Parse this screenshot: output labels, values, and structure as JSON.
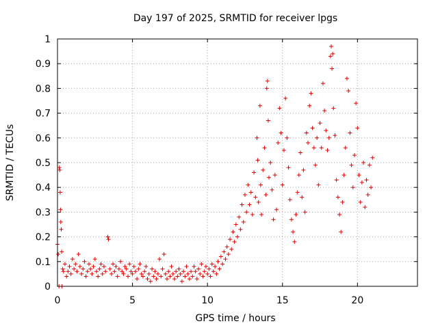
{
  "chart_data": {
    "type": "scatter",
    "title": "Day 197 of 2025, SRMTID for receiver lpgs",
    "xlabel": "GPS time / hours",
    "ylabel": "SRMTID / TECUs",
    "xlim": [
      0,
      24
    ],
    "ylim": [
      0,
      1
    ],
    "xticks": [
      0,
      5,
      10,
      15,
      20
    ],
    "xtick_labels": [
      "0",
      "5",
      "10",
      "15",
      "20"
    ],
    "yticks": [
      0,
      0.1,
      0.2,
      0.3,
      0.4,
      0.5,
      0.6,
      0.7,
      0.8,
      0.9,
      1
    ],
    "ytick_labels": [
      "0",
      "0.1",
      "0.2",
      "0.3",
      "0.4",
      "0.5",
      "0.6",
      "0.7",
      "0.8",
      "0.9",
      "1"
    ],
    "grid": true,
    "marker": "+",
    "color": "#e00000",
    "series": [
      {
        "name": "SRMTID",
        "points": [
          [
            0.0,
            0.17
          ],
          [
            0.05,
            0.13
          ],
          [
            0.1,
            0.0
          ],
          [
            0.12,
            0.48
          ],
          [
            0.15,
            0.47
          ],
          [
            0.18,
            0.38
          ],
          [
            0.2,
            0.31
          ],
          [
            0.22,
            0.26
          ],
          [
            0.25,
            0.23
          ],
          [
            0.28,
            0.14
          ],
          [
            0.3,
            0.0
          ],
          [
            0.35,
            0.07
          ],
          [
            0.4,
            0.06
          ],
          [
            0.5,
            0.09
          ],
          [
            0.6,
            0.04
          ],
          [
            0.7,
            0.06
          ],
          [
            0.8,
            0.08
          ],
          [
            0.9,
            0.05
          ],
          [
            1.0,
            0.11
          ],
          [
            1.1,
            0.07
          ],
          [
            1.2,
            0.09
          ],
          [
            1.3,
            0.06
          ],
          [
            1.4,
            0.13
          ],
          [
            1.5,
            0.08
          ],
          [
            1.6,
            0.05
          ],
          [
            1.7,
            0.07
          ],
          [
            1.8,
            0.1
          ],
          [
            1.9,
            0.04
          ],
          [
            2.0,
            0.06
          ],
          [
            2.1,
            0.09
          ],
          [
            2.2,
            0.07
          ],
          [
            2.3,
            0.05
          ],
          [
            2.4,
            0.08
          ],
          [
            2.5,
            0.11
          ],
          [
            2.6,
            0.06
          ],
          [
            2.7,
            0.04
          ],
          [
            2.8,
            0.07
          ],
          [
            2.9,
            0.09
          ],
          [
            3.0,
            0.05
          ],
          [
            3.1,
            0.08
          ],
          [
            3.2,
            0.06
          ],
          [
            3.35,
            0.2
          ],
          [
            3.4,
            0.19
          ],
          [
            3.5,
            0.07
          ],
          [
            3.6,
            0.05
          ],
          [
            3.7,
            0.09
          ],
          [
            3.8,
            0.06
          ],
          [
            3.9,
            0.08
          ],
          [
            4.0,
            0.04
          ],
          [
            4.1,
            0.07
          ],
          [
            4.2,
            0.1
          ],
          [
            4.3,
            0.06
          ],
          [
            4.4,
            0.05
          ],
          [
            4.5,
            0.08
          ],
          [
            4.6,
            0.07
          ],
          [
            4.7,
            0.04
          ],
          [
            4.8,
            0.09
          ],
          [
            4.9,
            0.06
          ],
          [
            5.0,
            0.05
          ],
          [
            5.1,
            0.08
          ],
          [
            5.2,
            0.06
          ],
          [
            5.3,
            0.03
          ],
          [
            5.4,
            0.07
          ],
          [
            5.5,
            0.09
          ],
          [
            5.6,
            0.05
          ],
          [
            5.7,
            0.04
          ],
          [
            5.8,
            0.06
          ],
          [
            5.9,
            0.08
          ],
          [
            6.0,
            0.03
          ],
          [
            6.1,
            0.05
          ],
          [
            6.2,
            0.02
          ],
          [
            6.3,
            0.07
          ],
          [
            6.4,
            0.04
          ],
          [
            6.5,
            0.06
          ],
          [
            6.6,
            0.03
          ],
          [
            6.7,
            0.05
          ],
          [
            6.8,
            0.11
          ],
          [
            6.9,
            0.04
          ],
          [
            7.0,
            0.07
          ],
          [
            7.1,
            0.13
          ],
          [
            7.2,
            0.05
          ],
          [
            7.3,
            0.03
          ],
          [
            7.4,
            0.06
          ],
          [
            7.5,
            0.04
          ],
          [
            7.6,
            0.08
          ],
          [
            7.7,
            0.05
          ],
          [
            7.8,
            0.03
          ],
          [
            7.9,
            0.06
          ],
          [
            8.0,
            0.04
          ],
          [
            8.1,
            0.07
          ],
          [
            8.2,
            0.05
          ],
          [
            8.3,
            0.02
          ],
          [
            8.4,
            0.06
          ],
          [
            8.5,
            0.04
          ],
          [
            8.6,
            0.08
          ],
          [
            8.7,
            0.05
          ],
          [
            8.8,
            0.03
          ],
          [
            8.9,
            0.06
          ],
          [
            9.0,
            0.04
          ],
          [
            9.1,
            0.08
          ],
          [
            9.2,
            0.06
          ],
          [
            9.3,
            0.03
          ],
          [
            9.4,
            0.07
          ],
          [
            9.5,
            0.05
          ],
          [
            9.6,
            0.09
          ],
          [
            9.7,
            0.04
          ],
          [
            9.8,
            0.06
          ],
          [
            9.9,
            0.08
          ],
          [
            10.0,
            0.05
          ],
          [
            10.1,
            0.07
          ],
          [
            10.2,
            0.04
          ],
          [
            10.3,
            0.09
          ],
          [
            10.4,
            0.06
          ],
          [
            10.5,
            0.08
          ],
          [
            10.6,
            0.05
          ],
          [
            10.7,
            0.1
          ],
          [
            10.8,
            0.07
          ],
          [
            10.9,
            0.12
          ],
          [
            11.0,
            0.09
          ],
          [
            11.1,
            0.14
          ],
          [
            11.2,
            0.11
          ],
          [
            11.3,
            0.16
          ],
          [
            11.4,
            0.13
          ],
          [
            11.5,
            0.19
          ],
          [
            11.6,
            0.15
          ],
          [
            11.7,
            0.22
          ],
          [
            11.8,
            0.18
          ],
          [
            11.9,
            0.25
          ],
          [
            12.0,
            0.2
          ],
          [
            12.1,
            0.28
          ],
          [
            12.2,
            0.23
          ],
          [
            12.3,
            0.33
          ],
          [
            12.4,
            0.26
          ],
          [
            12.5,
            0.37
          ],
          [
            12.6,
            0.3
          ],
          [
            12.7,
            0.41
          ],
          [
            12.8,
            0.33
          ],
          [
            12.9,
            0.38
          ],
          [
            13.0,
            0.29
          ],
          [
            13.1,
            0.46
          ],
          [
            13.2,
            0.36
          ],
          [
            13.3,
            0.6
          ],
          [
            13.35,
            0.51
          ],
          [
            13.4,
            0.34
          ],
          [
            13.5,
            0.73
          ],
          [
            13.55,
            0.41
          ],
          [
            13.6,
            0.29
          ],
          [
            13.7,
            0.47
          ],
          [
            13.8,
            0.56
          ],
          [
            13.9,
            0.37
          ],
          [
            13.95,
            0.8
          ],
          [
            14.0,
            0.83
          ],
          [
            14.05,
            0.67
          ],
          [
            14.1,
            0.44
          ],
          [
            14.2,
            0.5
          ],
          [
            14.3,
            0.39
          ],
          [
            14.4,
            0.27
          ],
          [
            14.5,
            0.45
          ],
          [
            14.6,
            0.31
          ],
          [
            14.7,
            0.58
          ],
          [
            14.8,
            0.72
          ],
          [
            14.9,
            0.62
          ],
          [
            15.0,
            0.41
          ],
          [
            15.1,
            0.55
          ],
          [
            15.2,
            0.76
          ],
          [
            15.3,
            0.6
          ],
          [
            15.4,
            0.48
          ],
          [
            15.5,
            0.35
          ],
          [
            15.6,
            0.27
          ],
          [
            15.7,
            0.22
          ],
          [
            15.8,
            0.18
          ],
          [
            15.9,
            0.29
          ],
          [
            16.0,
            0.38
          ],
          [
            16.1,
            0.45
          ],
          [
            16.2,
            0.54
          ],
          [
            16.3,
            0.36
          ],
          [
            16.4,
            0.47
          ],
          [
            16.5,
            0.3
          ],
          [
            16.6,
            0.62
          ],
          [
            16.7,
            0.58
          ],
          [
            16.8,
            0.73
          ],
          [
            16.9,
            0.78
          ],
          [
            17.0,
            0.64
          ],
          [
            17.1,
            0.56
          ],
          [
            17.2,
            0.49
          ],
          [
            17.3,
            0.6
          ],
          [
            17.4,
            0.41
          ],
          [
            17.5,
            0.66
          ],
          [
            17.6,
            0.56
          ],
          [
            17.7,
            0.82
          ],
          [
            17.8,
            0.71
          ],
          [
            17.9,
            0.63
          ],
          [
            18.0,
            0.55
          ],
          [
            18.1,
            0.6
          ],
          [
            18.2,
            0.93
          ],
          [
            18.25,
            0.97
          ],
          [
            18.3,
            0.88
          ],
          [
            18.35,
            0.94
          ],
          [
            18.4,
            0.72
          ],
          [
            18.5,
            0.61
          ],
          [
            18.6,
            0.43
          ],
          [
            18.7,
            0.36
          ],
          [
            18.8,
            0.29
          ],
          [
            18.9,
            0.22
          ],
          [
            19.0,
            0.34
          ],
          [
            19.1,
            0.45
          ],
          [
            19.2,
            0.56
          ],
          [
            19.3,
            0.84
          ],
          [
            19.4,
            0.79
          ],
          [
            19.5,
            0.62
          ],
          [
            19.6,
            0.49
          ],
          [
            19.7,
            0.4
          ],
          [
            19.8,
            0.53
          ],
          [
            19.9,
            0.74
          ],
          [
            20.0,
            0.64
          ],
          [
            20.1,
            0.45
          ],
          [
            20.2,
            0.34
          ],
          [
            20.3,
            0.42
          ],
          [
            20.4,
            0.5
          ],
          [
            20.5,
            0.32
          ],
          [
            20.6,
            0.43
          ],
          [
            20.7,
            0.37
          ],
          [
            20.8,
            0.49
          ],
          [
            20.9,
            0.4
          ],
          [
            21.0,
            0.52
          ]
        ]
      }
    ]
  }
}
